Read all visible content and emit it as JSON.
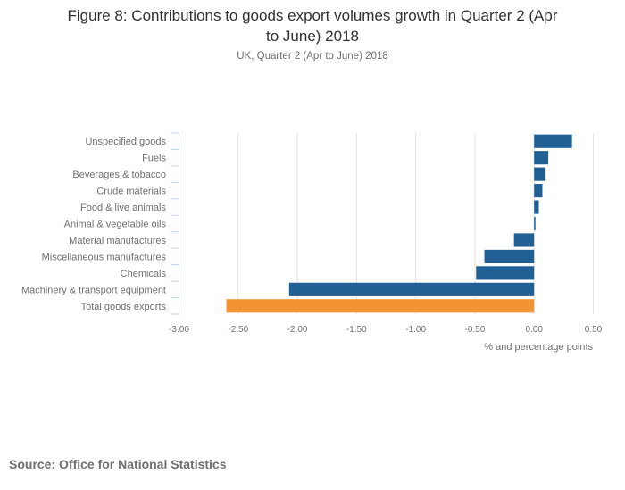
{
  "chart_data": {
    "type": "bar",
    "orientation": "horizontal",
    "title": "Figure 8: Contributions to goods export volumes growth in Quarter 2 (Apr to June) 2018",
    "title_lines": [
      "Figure 8: Contributions to goods export volumes growth in Quarter 2 (Apr",
      "to June) 2018"
    ],
    "subtitle": "UK, Quarter 2 (Apr to June) 2018",
    "xlabel": "% and percentage points",
    "ylabel": "",
    "xlim": [
      -3.0,
      0.5
    ],
    "xticks": [
      -3.0,
      -2.5,
      -2.0,
      -1.5,
      -1.0,
      -0.5,
      0.0,
      0.5
    ],
    "xtick_labels": [
      "-3.00",
      "-2.50",
      "-2.00",
      "-1.50",
      "-1.00",
      "-0.50",
      "0.00",
      "0.50"
    ],
    "grid": "vertical",
    "legend": "none",
    "categories": [
      "Unspecified goods",
      "Fuels",
      "Beverages & tobacco",
      "Crude materials",
      "Food & live animals",
      "Animal & vegetable oils",
      "Material manufactures",
      "Miscellaneous manufactures",
      "Chemicals",
      "Machinery & transport equipment",
      "Total goods exports"
    ],
    "values": [
      0.32,
      0.12,
      0.09,
      0.07,
      0.04,
      0.01,
      -0.17,
      -0.42,
      -0.49,
      -2.07,
      -2.6
    ],
    "colors": [
      "#206095",
      "#206095",
      "#206095",
      "#206095",
      "#206095",
      "#206095",
      "#206095",
      "#206095",
      "#206095",
      "#206095",
      "#F39431"
    ]
  },
  "source": "Source: Office for National Statistics",
  "style": {
    "primary_color": "#206095",
    "highlight_color": "#F39431",
    "grid_color": "#e2e2e2",
    "axis_color": "#c6d2e6"
  }
}
